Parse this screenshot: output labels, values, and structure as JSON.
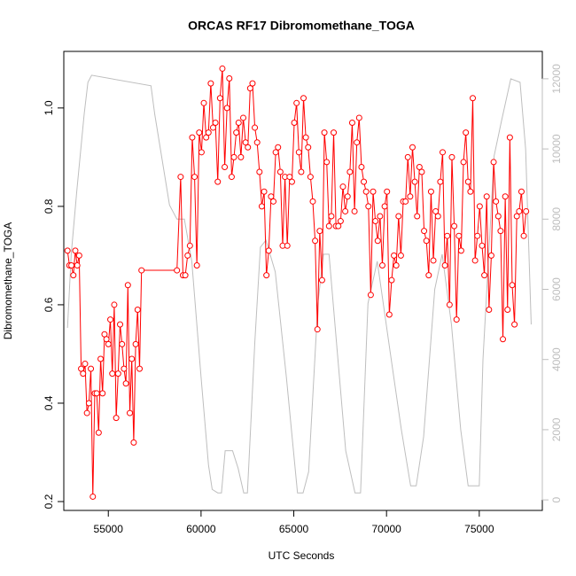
{
  "chart_data": {
    "type": "line",
    "title": "ORCAS RF17 Dibromomethane_TOGA",
    "xlabel": "UTC Seconds",
    "ylabel": "Dibromomethane_TOGA",
    "xlim": [
      52600,
      78400
    ],
    "ylim": [
      0.182,
      1.115
    ],
    "y2lim": [
      -300,
      12780
    ],
    "xticks": [
      55000,
      60000,
      65000,
      70000,
      75000
    ],
    "yticks": [
      0.2,
      0.4,
      0.6,
      0.8,
      {
        "value": 1,
        "label": "1.0"
      }
    ],
    "y2ticks": [
      0,
      2000,
      4000,
      6000,
      8000,
      10000,
      12000
    ],
    "series": [
      {
        "color": "#bebebe",
        "axis": "y2",
        "x": [
          52800,
          53000,
          53300,
          53700,
          53900,
          54100,
          57300,
          57500,
          58300,
          58700,
          59100,
          59500,
          60000,
          60400,
          60600,
          60900,
          61100,
          61300,
          61700,
          62000,
          62300,
          62500,
          62900,
          63200,
          63500,
          64000,
          64600,
          65200,
          65500,
          65800,
          66300,
          66600,
          66900,
          67300,
          67800,
          68300,
          68600,
          69000,
          69500,
          70200,
          70800,
          71300,
          71600,
          72000,
          72600,
          73000,
          73500,
          74000,
          74400,
          75000,
          75200,
          75800,
          76200,
          76700,
          77200,
          77500,
          77800
        ],
        "values": [
          4900,
          7000,
          8800,
          11000,
          11900,
          12100,
          11800,
          11000,
          8400,
          8000,
          8000,
          6800,
          3500,
          1000,
          300,
          200,
          200,
          1400,
          1400,
          900,
          200,
          200,
          4500,
          7200,
          7400,
          6500,
          3500,
          200,
          200,
          800,
          5600,
          7000,
          7000,
          4500,
          1400,
          200,
          200,
          5600,
          6800,
          4200,
          2000,
          400,
          400,
          1800,
          6000,
          7000,
          5000,
          2000,
          400,
          400,
          4000,
          9800,
          10800,
          12000,
          11900,
          10000,
          5000
        ]
      },
      {
        "color": "#ff0000",
        "x": [
          52800,
          52905,
          53010,
          53115,
          53220,
          53325,
          53430,
          53535,
          53640,
          53745,
          53850,
          53955,
          54060,
          54165,
          54270,
          54375,
          54480,
          54585,
          54690,
          54795,
          54900,
          55005,
          55110,
          55215,
          55320,
          55425,
          55530,
          55635,
          55740,
          55845,
          55950,
          56055,
          56160,
          56265,
          56370,
          56475,
          56580,
          56685,
          56790,
          58700,
          58900,
          59025,
          59150,
          59275,
          59400,
          59525,
          59650,
          59775,
          59900,
          60025,
          60150,
          60275,
          60400,
          60525,
          60650,
          60775,
          60900,
          61025,
          61150,
          61275,
          61400,
          61525,
          61650,
          61775,
          61900,
          62025,
          62150,
          62275,
          62400,
          62525,
          62650,
          62775,
          62900,
          63025,
          63150,
          63275,
          63400,
          63525,
          63650,
          63775,
          63900,
          64025,
          64150,
          64275,
          64400,
          64525,
          64650,
          64775,
          64900,
          65025,
          65150,
          65275,
          65400,
          65525,
          65650,
          65775,
          65900,
          66025,
          66150,
          66275,
          66400,
          66525,
          66650,
          66775,
          66900,
          67025,
          67150,
          67275,
          67400,
          67525,
          67650,
          67775,
          67900,
          68025,
          68150,
          68275,
          68400,
          68525,
          68650,
          68775,
          68900,
          69025,
          69150,
          69275,
          69400,
          69525,
          69650,
          69775,
          69900,
          70025,
          70150,
          70275,
          70400,
          70525,
          70650,
          70775,
          70900,
          71025,
          71150,
          71275,
          71400,
          71525,
          71650,
          71775,
          71900,
          72025,
          72150,
          72275,
          72400,
          72525,
          72650,
          72775,
          72900,
          73025,
          73150,
          73275,
          73400,
          73525,
          73650,
          73775,
          73900,
          74025,
          74150,
          74275,
          74400,
          74525,
          74650,
          74775,
          74900,
          75025,
          75150,
          75275,
          75400,
          75525,
          75650,
          75775,
          75900,
          76025,
          76150,
          76275,
          76400,
          76525,
          76650,
          76775,
          76900,
          77025,
          77150,
          77275,
          77400,
          77525
        ],
        "values": [
          0.71,
          0.68,
          0.68,
          0.66,
          0.71,
          0.68,
          0.7,
          0.47,
          0.46,
          0.48,
          0.38,
          0.4,
          0.47,
          0.21,
          0.42,
          0.42,
          0.34,
          0.49,
          0.42,
          0.54,
          0.53,
          0.52,
          0.57,
          0.46,
          0.6,
          0.37,
          0.46,
          0.56,
          0.52,
          0.47,
          0.44,
          0.64,
          0.38,
          0.49,
          0.32,
          0.52,
          0.59,
          0.47,
          0.67,
          0.67,
          0.86,
          0.66,
          0.66,
          0.7,
          0.72,
          0.94,
          0.86,
          0.68,
          0.95,
          0.91,
          1.01,
          0.94,
          0.95,
          1.05,
          0.96,
          0.97,
          0.85,
          1.02,
          1.08,
          0.88,
          1.0,
          1.06,
          0.86,
          0.9,
          0.95,
          0.97,
          0.9,
          0.98,
          0.93,
          0.92,
          1.04,
          1.05,
          0.96,
          0.93,
          0.87,
          0.8,
          0.83,
          0.66,
          0.71,
          0.82,
          0.81,
          0.91,
          0.92,
          0.87,
          0.72,
          0.86,
          0.72,
          0.86,
          0.85,
          0.97,
          1.01,
          0.91,
          0.87,
          1.02,
          0.94,
          0.92,
          0.86,
          0.81,
          0.73,
          0.55,
          0.75,
          0.65,
          0.95,
          0.89,
          0.76,
          0.78,
          0.95,
          0.76,
          0.76,
          0.77,
          0.84,
          0.79,
          0.82,
          0.87,
          0.97,
          0.79,
          0.93,
          0.98,
          0.88,
          0.85,
          0.83,
          0.8,
          0.62,
          0.83,
          0.77,
          0.73,
          0.78,
          0.68,
          0.8,
          0.83,
          0.58,
          0.65,
          0.7,
          0.68,
          0.78,
          0.7,
          0.81,
          0.81,
          0.9,
          0.82,
          0.92,
          0.85,
          0.78,
          0.88,
          0.87,
          0.75,
          0.73,
          0.66,
          0.83,
          0.69,
          0.79,
          0.78,
          0.85,
          0.91,
          0.68,
          0.74,
          0.6,
          0.9,
          0.76,
          0.57,
          0.74,
          0.71,
          0.89,
          0.95,
          0.85,
          0.83,
          1.02,
          0.69,
          0.74,
          0.8,
          0.72,
          0.66,
          0.82,
          0.59,
          0.7,
          0.89,
          0.81,
          0.78,
          0.75,
          0.53,
          0.82,
          0.59,
          0.94,
          0.64,
          0.56,
          0.78,
          0.79,
          0.83,
          0.74,
          0.79
        ]
      }
    ]
  }
}
